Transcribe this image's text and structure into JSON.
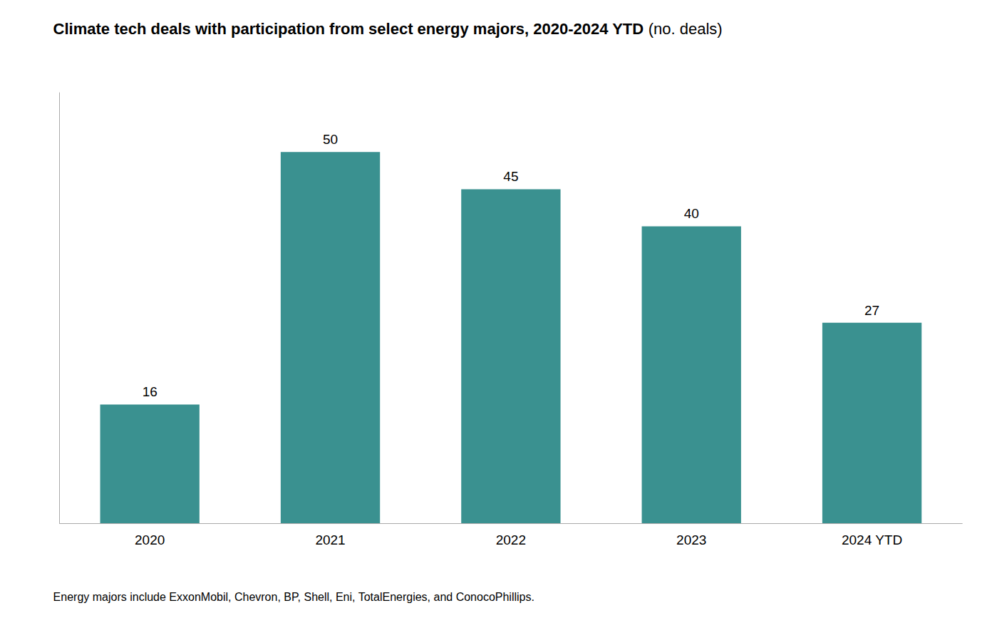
{
  "chart_data": {
    "type": "bar",
    "title": "Climate tech deals with participation from select energy majors, 2020-2024 YTD",
    "subtitle": "(no. deals)",
    "categories": [
      "2020",
      "2021",
      "2022",
      "2023",
      "2024 YTD"
    ],
    "values": [
      16,
      50,
      45,
      40,
      27
    ],
    "color": "#3a9190",
    "ylim": [
      0,
      58
    ],
    "grid": false,
    "data_labels": true,
    "tick_labels": "x",
    "annotations": [
      "Energy majors include ExxonMobil, Chevron, BP, Shell, Eni, TotalEnergies, and ConocoPhillips."
    ]
  }
}
